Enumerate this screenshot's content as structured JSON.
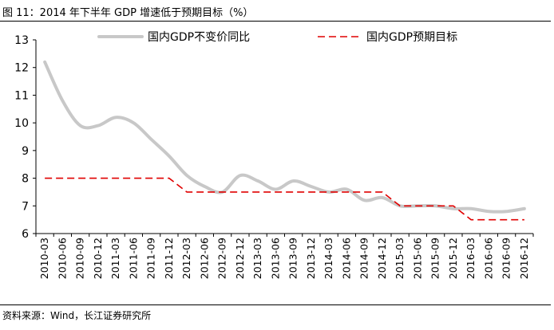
{
  "figure": {
    "title": "图 11：2014 年下半年 GDP 增速低于预期目标（%）",
    "source": "资料来源：Wind，长江证券研究所"
  },
  "chart_data": {
    "type": "line",
    "title": "2014 年下半年 GDP 增速低于预期目标（%）",
    "xlabel": "",
    "ylabel": "",
    "ylim": [
      6,
      13
    ],
    "yticks": [
      "6",
      "7",
      "8",
      "9",
      "10",
      "11",
      "12",
      "13"
    ],
    "categories": [
      "2010-03",
      "2010-06",
      "2010-09",
      "2010-12",
      "2011-03",
      "2011-06",
      "2011-09",
      "2011-12",
      "2012-03",
      "2012-06",
      "2012-09",
      "2012-12",
      "2013-03",
      "2013-06",
      "2013-09",
      "2013-12",
      "2014-03",
      "2014-06",
      "2014-09",
      "2014-12",
      "2015-03",
      "2015-06",
      "2015-09",
      "2015-12",
      "2016-03",
      "2016-06",
      "2016-09",
      "2016-12"
    ],
    "legend_position": "top",
    "series": [
      {
        "name": "国内GDP不变价同比",
        "color": "#c8c8c8",
        "style": "solid",
        "values": [
          12.2,
          10.8,
          9.9,
          9.9,
          10.2,
          10.0,
          9.4,
          8.8,
          8.1,
          7.7,
          7.5,
          8.1,
          7.9,
          7.6,
          7.9,
          7.7,
          7.5,
          7.6,
          7.2,
          7.3,
          7.0,
          7.0,
          7.0,
          6.9,
          6.9,
          6.8,
          6.8,
          6.9
        ]
      },
      {
        "name": "国内GDP预期目标",
        "color": "#e00000",
        "style": "dashed",
        "values": [
          8.0,
          8.0,
          8.0,
          8.0,
          8.0,
          8.0,
          8.0,
          8.0,
          7.5,
          7.5,
          7.5,
          7.5,
          7.5,
          7.5,
          7.5,
          7.5,
          7.5,
          7.5,
          7.5,
          7.5,
          7.0,
          7.0,
          7.0,
          7.0,
          6.5,
          6.5,
          6.5,
          6.5
        ]
      }
    ]
  }
}
